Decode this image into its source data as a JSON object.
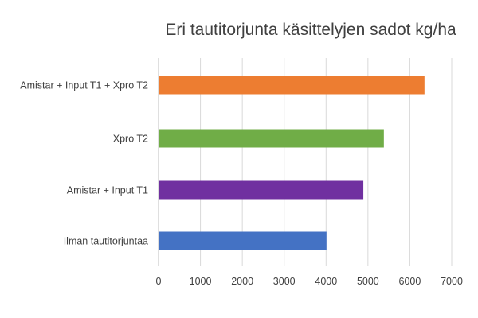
{
  "chart_data": {
    "type": "bar",
    "orientation": "horizontal",
    "title": "Eri tautitorjunta käsittelyjen sadot kg/ha",
    "xlabel": "",
    "ylabel": "",
    "categories": [
      "Amistar + Input T1 + Xpro T2",
      "Xpro T2",
      "Amistar + Input T1",
      "Ilman tautitorjuntaa"
    ],
    "values": [
      6350,
      5380,
      4890,
      4010
    ],
    "colors": [
      "#ED7D31",
      "#70AD47",
      "#7030A0",
      "#4472C4"
    ],
    "xlim": [
      0,
      7000
    ],
    "xticks": [
      0,
      1000,
      2000,
      3000,
      4000,
      5000,
      6000,
      7000
    ],
    "grid": "vertical",
    "legend": "none"
  }
}
